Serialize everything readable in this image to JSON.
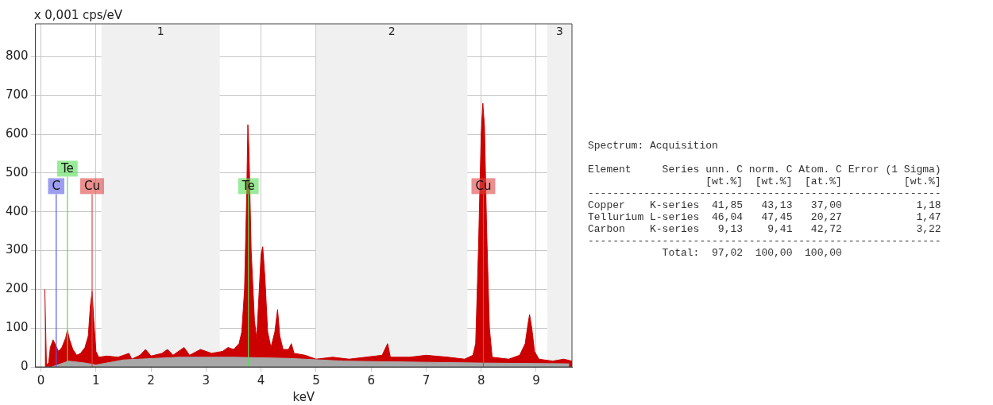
{
  "chart_data": {
    "type": "area",
    "ylabel": "x 0,001 cps/eV",
    "xlabel": "keV",
    "xlim": [
      -0.1,
      9.65
    ],
    "ylim": [
      0,
      885
    ],
    "xticks": [
      0,
      1,
      2,
      3,
      4,
      5,
      6,
      7,
      8,
      9
    ],
    "yticks": [
      0,
      100,
      200,
      300,
      400,
      500,
      600,
      700,
      800
    ],
    "grid": true,
    "legend": false,
    "marker": "none",
    "series": [
      {
        "color": "#a8a8a8",
        "x": [
          0.2,
          0.5,
          0.8,
          1.0,
          1.5,
          2.5,
          3.5,
          4.5,
          5.5,
          7,
          8,
          9.6
        ],
        "values": [
          0,
          15,
          10,
          5,
          18,
          25,
          25,
          22,
          15,
          12,
          10,
          8
        ]
      },
      {
        "color": "#cc0000",
        "x": [
          0.07,
          0.1,
          0.14,
          0.17,
          0.22,
          0.27,
          0.32,
          0.38,
          0.45,
          0.48,
          0.52,
          0.58,
          0.65,
          0.72,
          0.8,
          0.86,
          0.9,
          0.93,
          0.96,
          1.0,
          1.05,
          1.2,
          1.4,
          1.6,
          1.65,
          1.8,
          1.9,
          2.0,
          2.2,
          2.3,
          2.4,
          2.6,
          2.7,
          2.9,
          3.1,
          3.3,
          3.4,
          3.5,
          3.6,
          3.65,
          3.7,
          3.74,
          3.76,
          3.78,
          3.82,
          3.88,
          3.92,
          3.96,
          4.0,
          4.03,
          4.07,
          4.12,
          4.18,
          4.25,
          4.3,
          4.34,
          4.4,
          4.5,
          4.55,
          4.6,
          4.8,
          5.0,
          5.3,
          5.6,
          5.9,
          6.2,
          6.3,
          6.35,
          6.7,
          7.0,
          7.4,
          7.7,
          7.85,
          7.9,
          7.95,
          8.0,
          8.03,
          8.06,
          8.1,
          8.15,
          8.2,
          8.5,
          8.7,
          8.8,
          8.85,
          8.88,
          8.92,
          8.97,
          9.05,
          9.3,
          9.5,
          9.65
        ],
        "values": [
          200,
          5,
          10,
          50,
          70,
          55,
          40,
          50,
          75,
          95,
          70,
          45,
          30,
          35,
          50,
          80,
          160,
          195,
          120,
          40,
          25,
          28,
          25,
          35,
          20,
          30,
          45,
          28,
          35,
          45,
          30,
          50,
          30,
          45,
          35,
          40,
          50,
          45,
          60,
          90,
          200,
          450,
          625,
          560,
          300,
          120,
          70,
          180,
          290,
          310,
          230,
          90,
          50,
          90,
          148,
          80,
          45,
          45,
          60,
          35,
          30,
          20,
          25,
          20,
          25,
          30,
          60,
          25,
          25,
          30,
          25,
          20,
          30,
          60,
          300,
          600,
          680,
          620,
          350,
          100,
          25,
          20,
          30,
          60,
          110,
          135,
          100,
          40,
          20,
          15,
          20,
          15
        ]
      }
    ],
    "ref_lines": [
      {
        "axis": "x",
        "value": 0.277,
        "label": "C",
        "color": "#5a5ae6"
      },
      {
        "axis": "x",
        "value": 0.48,
        "label": "Te",
        "color": "#55dd55"
      },
      {
        "axis": "x",
        "value": 0.93,
        "label": "Cu",
        "color": "#dd4444"
      },
      {
        "axis": "x",
        "value": 3.77,
        "label": "Te",
        "color": "#55dd55"
      },
      {
        "axis": "x",
        "value": 8.04,
        "label": "Cu",
        "color": "#dd4444"
      }
    ],
    "bands": [
      {
        "axis": "x",
        "from": 1.1,
        "to": 3.25,
        "label": "1",
        "color": "#f0f0f0"
      },
      {
        "axis": "x",
        "from": 5.0,
        "to": 7.75,
        "label": "2",
        "color": "#f0f0f0"
      },
      {
        "axis": "x",
        "from": 9.2,
        "to": 9.65,
        "label": "3",
        "color": "#f0f0f0"
      }
    ],
    "annotations": [
      "Spectrum: Acquisition",
      "Element     Series unn. C norm. C Atom. C Error (1 Sigma)",
      "                   [wt.%]  [wt.%]  [at.%]          [wt.%]",
      "---------------------------------------------------------",
      "Copper    K-series  41,85   43,13   37,00            1,18",
      "Tellurium L-series  46,04   47,45   20,27            1,47",
      "Carbon    K-series   9,13    9,41   42,72            3,22",
      "---------------------------------------------------------",
      "            Total:  97,02  100,00  100,00"
    ]
  }
}
